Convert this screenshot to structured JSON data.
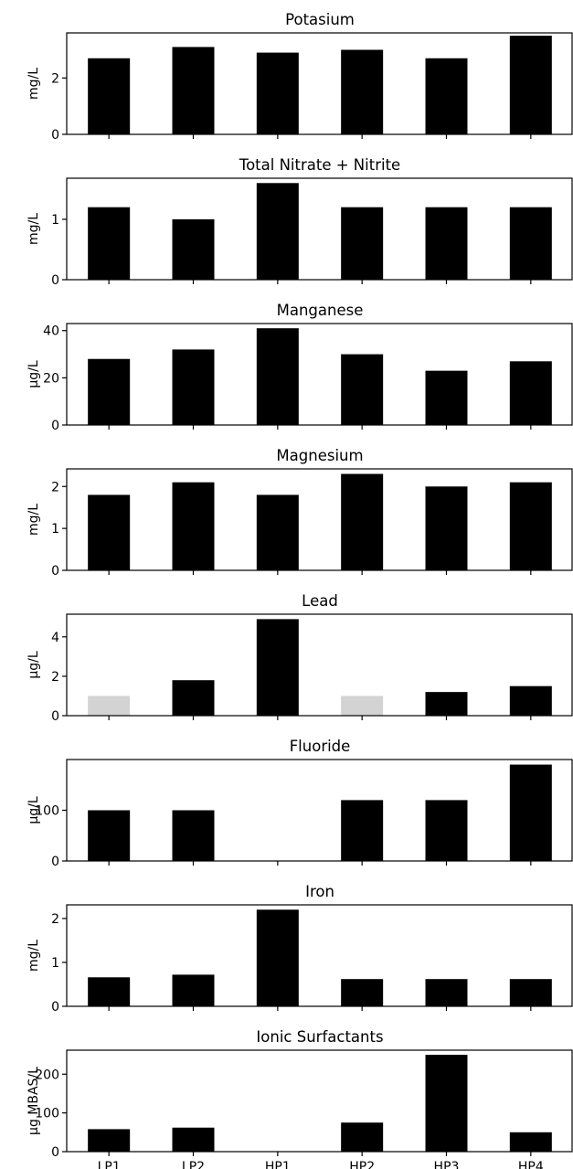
{
  "figure": {
    "background": "#ffffff",
    "bar_color": "#000000",
    "muted_bar_color": "#d3d3d3"
  },
  "chart_data": [
    {
      "type": "bar",
      "title": "Potasium",
      "ylabel": "mg/L",
      "categories": [
        "LP1",
        "LP2",
        "HP1",
        "HP2",
        "HP3",
        "HP4"
      ],
      "values": [
        2.7,
        3.1,
        2.9,
        3.0,
        2.7,
        3.5
      ],
      "ylim": [
        0,
        3.6
      ],
      "yticks": [
        0,
        2
      ],
      "show_xtick_labels": false
    },
    {
      "type": "bar",
      "title": "Total Nitrate + Nitrite",
      "ylabel": "mg/L",
      "categories": [
        "LP1",
        "LP2",
        "HP1",
        "HP2",
        "HP3",
        "HP4"
      ],
      "values": [
        1.2,
        1.0,
        1.6,
        1.2,
        1.2,
        1.2
      ],
      "ylim": [
        0,
        1.68
      ],
      "yticks": [
        0,
        1
      ],
      "show_xtick_labels": false
    },
    {
      "type": "bar",
      "title": "Manganese",
      "ylabel": "μg/L",
      "categories": [
        "LP1",
        "LP2",
        "HP1",
        "HP2",
        "HP3",
        "HP4"
      ],
      "values": [
        28,
        32,
        41,
        30,
        23,
        27
      ],
      "ylim": [
        0,
        43
      ],
      "yticks": [
        0,
        20,
        40
      ],
      "show_xtick_labels": false
    },
    {
      "type": "bar",
      "title": "Magnesium",
      "ylabel": "mg/L",
      "categories": [
        "LP1",
        "LP2",
        "HP1",
        "HP2",
        "HP3",
        "HP4"
      ],
      "values": [
        1.8,
        2.1,
        1.8,
        2.3,
        2.0,
        2.1
      ],
      "ylim": [
        0,
        2.42
      ],
      "yticks": [
        0,
        1,
        2
      ],
      "show_xtick_labels": false
    },
    {
      "type": "bar",
      "title": "Lead",
      "ylabel": "μg/L",
      "categories": [
        "LP1",
        "LP2",
        "HP1",
        "HP2",
        "HP3",
        "HP4"
      ],
      "values": [
        1.0,
        1.8,
        4.9,
        1.0,
        1.2,
        1.5
      ],
      "muted": [
        true,
        false,
        false,
        true,
        false,
        false
      ],
      "ylim": [
        0,
        5.15
      ],
      "yticks": [
        0,
        2,
        4
      ],
      "show_xtick_labels": false
    },
    {
      "type": "bar",
      "title": "Fluoride",
      "ylabel": "μg/L",
      "categories": [
        "LP1",
        "LP2",
        "HP1",
        "HP2",
        "HP3",
        "HP4"
      ],
      "values": [
        100,
        100,
        null,
        120,
        120,
        190
      ],
      "ylim": [
        0,
        200
      ],
      "yticks": [
        0,
        100
      ],
      "show_xtick_labels": false
    },
    {
      "type": "bar",
      "title": "Iron",
      "ylabel": "mg/L",
      "categories": [
        "LP1",
        "LP2",
        "HP1",
        "HP2",
        "HP3",
        "HP4"
      ],
      "values": [
        0.66,
        0.72,
        2.2,
        0.62,
        0.62,
        0.62
      ],
      "ylim": [
        0,
        2.31
      ],
      "yticks": [
        0,
        1,
        2
      ],
      "show_xtick_labels": false
    },
    {
      "type": "bar",
      "title": "Ionic Surfactants",
      "ylabel": "μg MBAS/L",
      "categories": [
        "LP1",
        "LP2",
        "HP1",
        "HP2",
        "HP3",
        "HP4"
      ],
      "values": [
        58,
        62,
        null,
        75,
        250,
        50
      ],
      "ylim": [
        0,
        262
      ],
      "yticks": [
        0,
        100,
        200
      ],
      "show_xtick_labels": true
    }
  ]
}
